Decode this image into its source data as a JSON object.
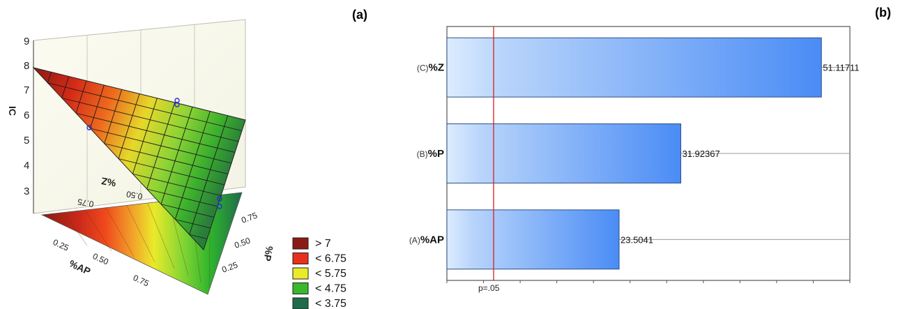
{
  "panel_a": {
    "label": "(a)",
    "z_axis_label": "IC",
    "z_ticks": [
      "9",
      "8",
      "7",
      "6",
      "5",
      "4",
      "3"
    ],
    "axis_z_name": "%Z",
    "axis_z_ticks": [
      "0.75",
      "0.50"
    ],
    "axis_ap_name": "%AP",
    "axis_ap_ticks": [
      "0.25",
      "0.50",
      "0.75"
    ],
    "axis_p_name": "%P",
    "axis_p_ticks": [
      "0.75",
      "0.50",
      "0.25"
    ],
    "legend": [
      {
        "label": "> 7",
        "color": "#8b1a12"
      },
      {
        "label": "< 6.75",
        "color": "#e8301c"
      },
      {
        "label": "< 5.75",
        "color": "#eaea2a"
      },
      {
        "label": "< 4.75",
        "color": "#38b82c"
      },
      {
        "label": "< 3.75",
        "color": "#1f6b4a"
      }
    ]
  },
  "panel_b": {
    "label": "(b)",
    "reference_label": "p=.05"
  },
  "chart_data": [
    {
      "type": "surface",
      "title": "",
      "zlabel": "IC",
      "zlim": [
        3,
        9
      ],
      "axes": [
        "%AP",
        "%P",
        "%Z"
      ],
      "axis_ticks": [
        0.25,
        0.5,
        0.75
      ],
      "contour_levels": [
        "> 7",
        "< 6.75",
        "< 5.75",
        "< 4.75",
        "< 3.75"
      ]
    },
    {
      "type": "bar",
      "orientation": "horizontal",
      "categories": [
        "(C)%Z",
        "(B)%P",
        "(A)%AP"
      ],
      "category_prefixes": [
        "(C)",
        "(B)",
        "(A)"
      ],
      "category_names": [
        "%Z",
        "%P",
        "%AP"
      ],
      "values": [
        51.11711,
        31.92367,
        23.5041
      ],
      "value_labels": [
        "51.11711",
        "31.92367",
        "23.5041"
      ],
      "reference_line": {
        "label": "p=.05",
        "value": 2.776
      },
      "xlim": [
        0,
        55
      ],
      "bar_color": "#4a8cf5"
    }
  ]
}
